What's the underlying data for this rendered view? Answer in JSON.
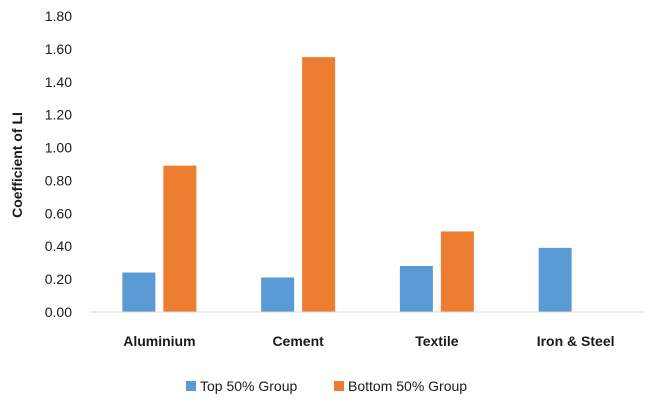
{
  "chart_data": {
    "type": "bar",
    "title": "",
    "xlabel": "",
    "ylabel": "Coefficient of LI",
    "ylim": [
      0,
      1.8
    ],
    "yticks": [
      "0.00",
      "0.20",
      "0.40",
      "0.60",
      "0.80",
      "1.00",
      "1.20",
      "1.40",
      "1.60",
      "1.80"
    ],
    "categories": [
      "Aluminium",
      "Cement",
      "Textile",
      "Iron & Steel"
    ],
    "series": [
      {
        "name": "Top 50% Group",
        "color": "#5b9bd5",
        "values": [
          0.24,
          0.21,
          0.28,
          0.39
        ]
      },
      {
        "name": "Bottom 50% Group",
        "color": "#ed7d31",
        "values": [
          0.89,
          1.55,
          0.49,
          null
        ]
      }
    ],
    "grid": false,
    "legend_position": "bottom"
  }
}
